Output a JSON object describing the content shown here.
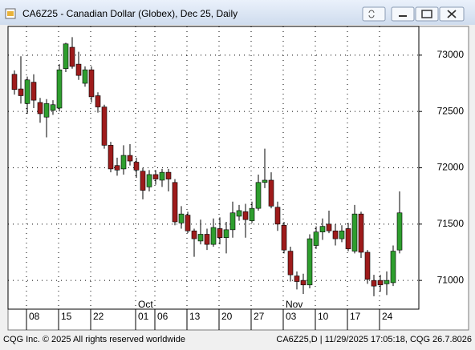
{
  "window": {
    "title": "CA6Z25 - Canadian Dollar (Globex), Dec 25, Daily"
  },
  "footer": {
    "left": "CQG Inc. © 2025 All rights reserved worldwide",
    "right": "CA6Z25,D | 11/29/2025 17:05:18, CQG 26.7.8026"
  },
  "chart_data": {
    "type": "candlestick",
    "categories": [
      null,
      null,
      "08",
      null,
      null,
      null,
      null,
      "15",
      null,
      null,
      null,
      null,
      "22",
      null,
      null,
      null,
      null,
      null,
      null,
      "01",
      null,
      null,
      "06",
      null,
      null,
      null,
      null,
      "13",
      null,
      null,
      null,
      null,
      "20",
      null,
      null,
      null,
      null,
      "27",
      null,
      null,
      null,
      null,
      "03",
      null,
      null,
      null,
      null,
      "10",
      null,
      null,
      null,
      null,
      "17",
      null,
      null,
      null,
      null,
      "24",
      null,
      null,
      null
    ],
    "month_labels": [
      {
        "label": "Oct",
        "at": 19
      },
      {
        "label": "Nov",
        "at": 42
      }
    ],
    "open": [
      72830,
      72700,
      72570,
      72760,
      72580,
      72450,
      72510,
      72530,
      72880,
      73070,
      72920,
      72750,
      72870,
      72640,
      72540,
      72200,
      72020,
      71990,
      72110,
      72050,
      71970,
      71830,
      71940,
      71890,
      71960,
      71870,
      71510,
      71580,
      71440,
      71350,
      71410,
      71320,
      71460,
      71380,
      71450,
      71570,
      71610,
      71530,
      71640,
      71870,
      71890,
      71650,
      71490,
      71260,
      71040,
      71000,
      70960,
      71310,
      71430,
      71500,
      71440,
      71370,
      71460,
      71260,
      71590,
      71250,
      71000,
      71000,
      70970,
      70980,
      71270
    ],
    "high": [
      72865,
      72990,
      72810,
      72830,
      72620,
      72610,
      72600,
      72920,
      73110,
      73160,
      73030,
      72900,
      72900,
      72670,
      72560,
      72230,
      72090,
      72200,
      72210,
      72090,
      72000,
      71980,
      71980,
      71990,
      71990,
      71900,
      71660,
      71610,
      71460,
      71540,
      71460,
      71550,
      71560,
      71520,
      71700,
      71670,
      71680,
      71700,
      71940,
      72170,
      71960,
      71700,
      71520,
      71300,
      71080,
      71060,
      71410,
      71480,
      71550,
      71620,
      71500,
      71490,
      71510,
      71670,
      71610,
      71270,
      71050,
      71050,
      71080,
      71310,
      71790
    ],
    "low": [
      72650,
      72570,
      72480,
      72530,
      72400,
      72270,
      72470,
      72500,
      72850,
      72880,
      72780,
      72720,
      72580,
      72490,
      72170,
      71960,
      71930,
      71940,
      72020,
      71910,
      71720,
      71790,
      71850,
      71830,
      71790,
      71490,
      71460,
      71420,
      71210,
      71320,
      71270,
      71300,
      71320,
      71240,
      71380,
      71530,
      71380,
      71510,
      71620,
      71820,
      71640,
      71440,
      71240,
      70990,
      70920,
      70880,
      70930,
      71280,
      71360,
      71420,
      71310,
      71340,
      71260,
      71240,
      71200,
      70970,
      70860,
      70900,
      70870,
      70950,
      71240
    ],
    "close": [
      72695,
      72640,
      72780,
      72600,
      72480,
      72570,
      72560,
      72870,
      73100,
      72900,
      72820,
      72870,
      72630,
      72540,
      72200,
      71990,
      71980,
      72110,
      72060,
      71980,
      71800,
      71940,
      71900,
      71960,
      71900,
      71520,
      71590,
      71440,
      71370,
      71410,
      71320,
      71470,
      71380,
      71450,
      71600,
      71620,
      71540,
      71640,
      71870,
      71890,
      71660,
      71500,
      71270,
      71050,
      70990,
      70960,
      71370,
      71430,
      71480,
      71440,
      71370,
      71440,
      71280,
      71590,
      71250,
      71010,
      70950,
      70960,
      71000,
      71260,
      71600
    ],
    "up_color": "#2e9e2e",
    "down_color": "#9e1b1b",
    "ylim": [
      70745,
      73255
    ],
    "yticks": [
      71000,
      71500,
      72000,
      72500,
      73000
    ],
    "grid": true
  }
}
